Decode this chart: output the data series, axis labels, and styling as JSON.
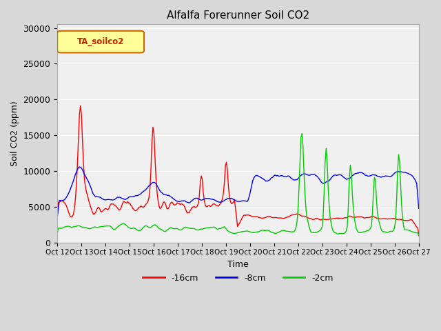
{
  "title": "Alfalfa Forerunner Soil CO2",
  "ylabel": "Soil CO2 (ppm)",
  "xlabel": "Time",
  "legend_label": "TA_soilco2",
  "line_labels": [
    "-16cm",
    "-8cm",
    "-2cm"
  ],
  "line_colors": [
    "#ff0000",
    "#0000ff",
    "#00cc00"
  ],
  "yticks": [
    0,
    5000,
    10000,
    15000,
    20000,
    25000,
    30000
  ],
  "xtick_labels": [
    "Oct 12",
    "Oct 13",
    "Oct 14",
    "Oct 15",
    "Oct 16",
    "Oct 17",
    "Oct 18",
    "Oct 19",
    "Oct 20",
    "Oct 21",
    "Oct 22",
    "Oct 23",
    "Oct 24",
    "Oct 25",
    "Oct 26",
    "Oct 27"
  ],
  "ylim": [
    0,
    30500
  ],
  "bg_color": "#e8e8e8",
  "plot_bg": "#f0f0f0"
}
